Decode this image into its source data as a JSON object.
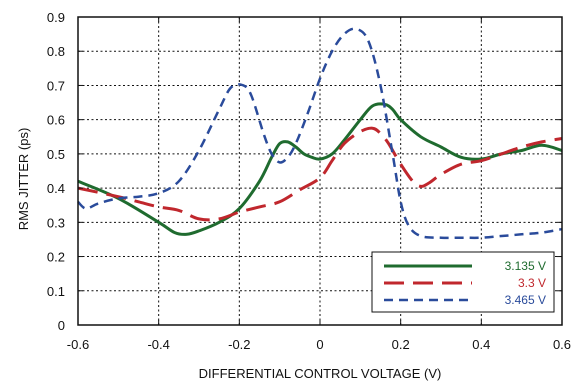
{
  "chart_data": {
    "type": "line",
    "title": "",
    "xlabel": "DIFFERENTIAL CONTROL VOLTAGE (V)",
    "ylabel": "RMS JITTER (ps)",
    "xlim": [
      -0.6,
      0.6
    ],
    "ylim": [
      0,
      0.9
    ],
    "xticks": [
      -0.6,
      -0.4,
      -0.2,
      0,
      0.2,
      0.4,
      0.6
    ],
    "yticks": [
      0,
      0.1,
      0.2,
      0.3,
      0.4,
      0.5,
      0.6,
      0.7,
      0.8,
      0.9
    ],
    "xtick_labels": [
      "-0.6",
      "-0.4",
      "-0.2",
      "0",
      "0.2",
      "0.4",
      "0.6"
    ],
    "ytick_labels": [
      "0",
      "0.1",
      "0.2",
      "0.3",
      "0.4",
      "0.5",
      "0.6",
      "0.7",
      "0.8",
      "0.9"
    ],
    "grid": true,
    "legend_position": "bottom-right",
    "series": [
      {
        "name": "3.135 V",
        "color": "#1f6b2f",
        "style": "solid",
        "x": [
          -0.6,
          -0.5,
          -0.4,
          -0.36,
          -0.33,
          -0.3,
          -0.25,
          -0.2,
          -0.15,
          -0.12,
          -0.1,
          -0.08,
          -0.06,
          -0.04,
          -0.02,
          0,
          0.03,
          0.06,
          0.1,
          0.13,
          0.16,
          0.18,
          0.2,
          0.25,
          0.3,
          0.35,
          0.4,
          0.45,
          0.5,
          0.55,
          0.6
        ],
        "y": [
          0.42,
          0.37,
          0.3,
          0.27,
          0.265,
          0.275,
          0.3,
          0.34,
          0.42,
          0.49,
          0.53,
          0.535,
          0.52,
          0.5,
          0.49,
          0.485,
          0.5,
          0.54,
          0.6,
          0.64,
          0.645,
          0.63,
          0.6,
          0.55,
          0.52,
          0.49,
          0.485,
          0.5,
          0.51,
          0.525,
          0.51
        ]
      },
      {
        "name": "3.3 V",
        "color": "#c0272d",
        "style": "dashed",
        "x": [
          -0.6,
          -0.5,
          -0.45,
          -0.4,
          -0.35,
          -0.3,
          -0.25,
          -0.2,
          -0.15,
          -0.1,
          -0.05,
          0,
          0.03,
          0.06,
          0.1,
          0.13,
          0.15,
          0.17,
          0.2,
          0.23,
          0.25,
          0.27,
          0.3,
          0.35,
          0.4,
          0.45,
          0.5,
          0.55,
          0.6
        ],
        "y": [
          0.4,
          0.375,
          0.36,
          0.345,
          0.335,
          0.31,
          0.31,
          0.33,
          0.345,
          0.36,
          0.395,
          0.43,
          0.48,
          0.53,
          0.565,
          0.575,
          0.56,
          0.53,
          0.47,
          0.42,
          0.405,
          0.415,
          0.44,
          0.47,
          0.48,
          0.5,
          0.52,
          0.535,
          0.545
        ]
      },
      {
        "name": "3.465 V",
        "color": "#2a4b9b",
        "style": "dashed",
        "x": [
          -0.6,
          -0.58,
          -0.55,
          -0.5,
          -0.45,
          -0.4,
          -0.35,
          -0.3,
          -0.25,
          -0.22,
          -0.19,
          -0.17,
          -0.14,
          -0.12,
          -0.1,
          -0.08,
          -0.06,
          -0.03,
          0,
          0.03,
          0.06,
          0.09,
          0.12,
          0.15,
          0.18,
          0.2,
          0.22,
          0.25,
          0.3,
          0.35,
          0.4,
          0.45,
          0.5,
          0.55,
          0.6
        ],
        "y": [
          0.36,
          0.34,
          0.355,
          0.37,
          0.375,
          0.385,
          0.42,
          0.51,
          0.63,
          0.695,
          0.7,
          0.67,
          0.56,
          0.5,
          0.475,
          0.49,
          0.53,
          0.62,
          0.72,
          0.8,
          0.85,
          0.865,
          0.83,
          0.7,
          0.5,
          0.36,
          0.29,
          0.26,
          0.255,
          0.255,
          0.255,
          0.26,
          0.265,
          0.27,
          0.28
        ]
      }
    ]
  }
}
